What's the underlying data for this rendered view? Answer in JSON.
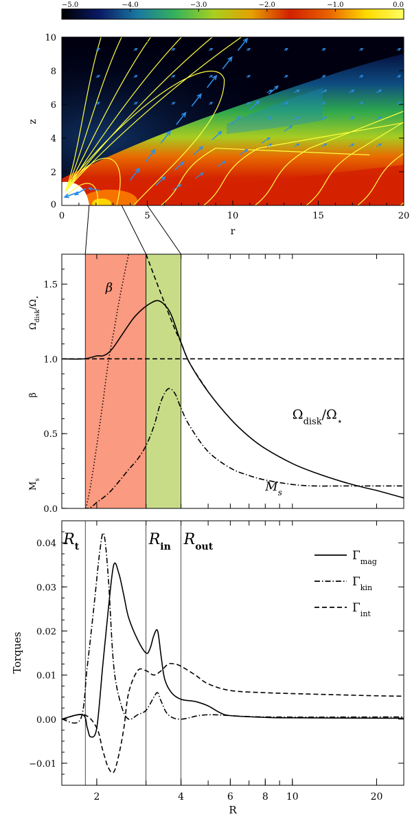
{
  "chart_data": [
    {
      "type": "heatmap",
      "colorbar": {
        "range": [
          -5.0,
          0.0
        ],
        "ticks": [
          -5.0,
          -4.0,
          -3.0,
          -2.0,
          -1.0,
          0.0
        ],
        "tick_labels": [
          "−5.0",
          "−4.0",
          "−3.0",
          "−2.0",
          "−1.0",
          "0.0"
        ],
        "colors": [
          "#000000",
          "#0a1a66",
          "#1a78a0",
          "#36b35a",
          "#a8d020",
          "#e5a000",
          "#d22000",
          "#e76000",
          "#ffd800",
          "#ffff60"
        ]
      },
      "xlabel": "r",
      "ylabel": "z",
      "xlim": [
        0,
        20
      ],
      "ylim": [
        0,
        10
      ],
      "xticks": [
        0,
        5,
        10,
        15,
        20
      ],
      "yticks": [
        2,
        4,
        6,
        8,
        10
      ],
      "field_line_color": "#ffff40",
      "arrow_color": "#2d8fe8"
    },
    {
      "type": "line",
      "xlim": [
        1.5,
        25
      ],
      "x_scale": "log",
      "ylim": [
        0,
        1.7
      ],
      "yticks": [
        0.0,
        0.5,
        1.0,
        1.5
      ],
      "ytick_labels": [
        "0.0",
        "0.5",
        "1.0",
        "1.5"
      ],
      "ylabels": [
        "M_s",
        "β",
        "Ω_disk/Ω_⋆"
      ],
      "regions": [
        {
          "x_from": 1.82,
          "x_to": 3.0,
          "color": "#fa9a80"
        },
        {
          "x_from": 3.0,
          "x_to": 4.0,
          "color": "#c8dc88"
        }
      ],
      "series": [
        {
          "name": "Ω_disk/Ω_⋆",
          "style": "solid",
          "x": [
            1.5,
            1.8,
            2.0,
            2.1,
            2.2,
            2.3,
            2.5,
            2.7,
            2.9,
            3.1,
            3.3,
            3.5,
            3.7,
            4.0,
            4.3,
            5.0,
            6.0,
            7.0,
            8.0,
            10.0,
            12.0,
            15.0,
            18.0,
            20.0,
            25.0
          ],
          "y": [
            1.0,
            1.0,
            1.02,
            1.02,
            1.04,
            1.08,
            1.18,
            1.27,
            1.33,
            1.37,
            1.39,
            1.36,
            1.29,
            1.11,
            0.97,
            0.78,
            0.6,
            0.48,
            0.4,
            0.3,
            0.24,
            0.18,
            0.14,
            0.12,
            0.07
          ]
        },
        {
          "name": "",
          "style": "dashed",
          "x": [
            1.5,
            2.0,
            3.0,
            3.3,
            3.5,
            3.7,
            4.0,
            4.3,
            5.0,
            6.0,
            8.0,
            12.0,
            25.0
          ],
          "y": [
            1.0,
            1.0,
            1.0,
            1.0,
            1.0,
            1.0,
            1.0,
            1.0,
            1.0,
            1.0,
            1.0,
            1.0,
            1.0
          ]
        },
        {
          "name": "",
          "style": "dashed",
          "x": [
            3.0,
            3.2,
            3.5,
            3.8,
            4.0,
            4.3,
            5.0
          ],
          "y": [
            1.7,
            1.56,
            1.37,
            1.2,
            1.11,
            0.97,
            0.78
          ]
        },
        {
          "name": "β",
          "style": "dotted",
          "x": [
            1.83,
            1.9,
            2.0,
            2.1,
            2.2,
            2.3,
            2.4,
            2.5,
            2.6
          ],
          "y": [
            0.0,
            0.15,
            0.42,
            0.7,
            0.98,
            1.18,
            1.38,
            1.55,
            1.7
          ]
        },
        {
          "name": "M_s",
          "style": "dashdot",
          "x": [
            1.5,
            1.85,
            2.0,
            2.2,
            2.4,
            2.6,
            2.8,
            3.0,
            3.2,
            3.4,
            3.6,
            3.8,
            4.0,
            4.3,
            5.0,
            6.0,
            7.0,
            8.0,
            10.0,
            12.0,
            15.0,
            20.0,
            25.0
          ],
          "y": [
            0.0,
            0.0,
            0.04,
            0.1,
            0.18,
            0.26,
            0.33,
            0.42,
            0.55,
            0.72,
            0.8,
            0.77,
            0.67,
            0.55,
            0.38,
            0.27,
            0.22,
            0.19,
            0.16,
            0.15,
            0.15,
            0.15,
            0.15
          ]
        }
      ],
      "annotations": [
        {
          "text": "β",
          "x": 2.15,
          "y": 1.45
        },
        {
          "text": "Ωdisk/Ω⋆",
          "x": 10.0,
          "y": 0.6
        },
        {
          "text": "Ms",
          "x": 8.0,
          "y": 0.12
        }
      ]
    },
    {
      "type": "line",
      "xlabel": "R",
      "ylabel": "Torques",
      "x_scale": "log",
      "xlim": [
        1.5,
        25
      ],
      "ylim": [
        -0.015,
        0.045
      ],
      "xticks": [
        2,
        4,
        6,
        8,
        10,
        20
      ],
      "xtick_labels": [
        "2",
        "4",
        "6",
        "8",
        "10",
        "20"
      ],
      "yticks": [
        -0.01,
        0.0,
        0.01,
        0.02,
        0.03,
        0.04
      ],
      "ytick_labels": [
        "−0.01",
        "0.00",
        "0.01",
        "0.02",
        "0.03",
        "0.04"
      ],
      "vlines": [
        {
          "x": 1.82,
          "label": "Rt"
        },
        {
          "x": 3.0,
          "label": "Rin"
        },
        {
          "x": 4.0,
          "label": "Rout"
        }
      ],
      "legend": {
        "placement": "top-right",
        "entries": [
          "Γmag",
          "Γkin",
          "Γint"
        ]
      },
      "series": [
        {
          "name": "Γmag",
          "style": "solid",
          "x": [
            1.5,
            1.78,
            1.85,
            1.9,
            2.0,
            2.1,
            2.2,
            2.3,
            2.4,
            2.5,
            2.6,
            2.8,
            3.0,
            3.1,
            3.2,
            3.3,
            3.4,
            3.5,
            3.7,
            4.0,
            4.5,
            5.0,
            5.5,
            6.0,
            8.0,
            10.0,
            25.0
          ],
          "y": [
            0.0,
            0.001,
            -0.002,
            -0.004,
            -0.002,
            0.012,
            0.025,
            0.035,
            0.033,
            0.028,
            0.023,
            0.018,
            0.015,
            0.016,
            0.019,
            0.02,
            0.014,
            0.009,
            0.006,
            0.0045,
            0.004,
            0.003,
            0.0015,
            0.0008,
            0.0004,
            0.0003,
            0.0002
          ]
        },
        {
          "name": "Γkin",
          "style": "dashdot",
          "x": [
            1.5,
            1.75,
            1.85,
            1.95,
            2.05,
            2.12,
            2.2,
            2.3,
            2.45,
            2.6,
            2.8,
            3.0,
            3.2,
            3.3,
            3.4,
            3.6,
            4.0,
            5.0,
            8.0,
            25.0
          ],
          "y": [
            0.0,
            0.0,
            0.012,
            0.025,
            0.038,
            0.042,
            0.032,
            0.012,
            0.003,
            0.0,
            0.001,
            0.002,
            0.005,
            0.006,
            0.004,
            0.001,
            0.0,
            0.001,
            0.0005,
            0.0005
          ]
        },
        {
          "name": "Γint",
          "style": "dashed",
          "x": [
            1.5,
            1.8,
            2.0,
            2.1,
            2.2,
            2.3,
            2.4,
            2.5,
            2.6,
            2.8,
            3.0,
            3.2,
            3.4,
            3.6,
            3.8,
            4.0,
            4.5,
            5.0,
            6.0,
            8.0,
            10.0,
            15.0,
            20.0,
            25.0
          ],
          "y": [
            0.0,
            0.001,
            -0.002,
            -0.007,
            -0.011,
            -0.012,
            -0.008,
            -0.002,
            0.006,
            0.011,
            0.011,
            0.01,
            0.011,
            0.0125,
            0.0125,
            0.012,
            0.01,
            0.008,
            0.0065,
            0.006,
            0.0058,
            0.0055,
            0.0053,
            0.0052
          ]
        }
      ]
    }
  ]
}
